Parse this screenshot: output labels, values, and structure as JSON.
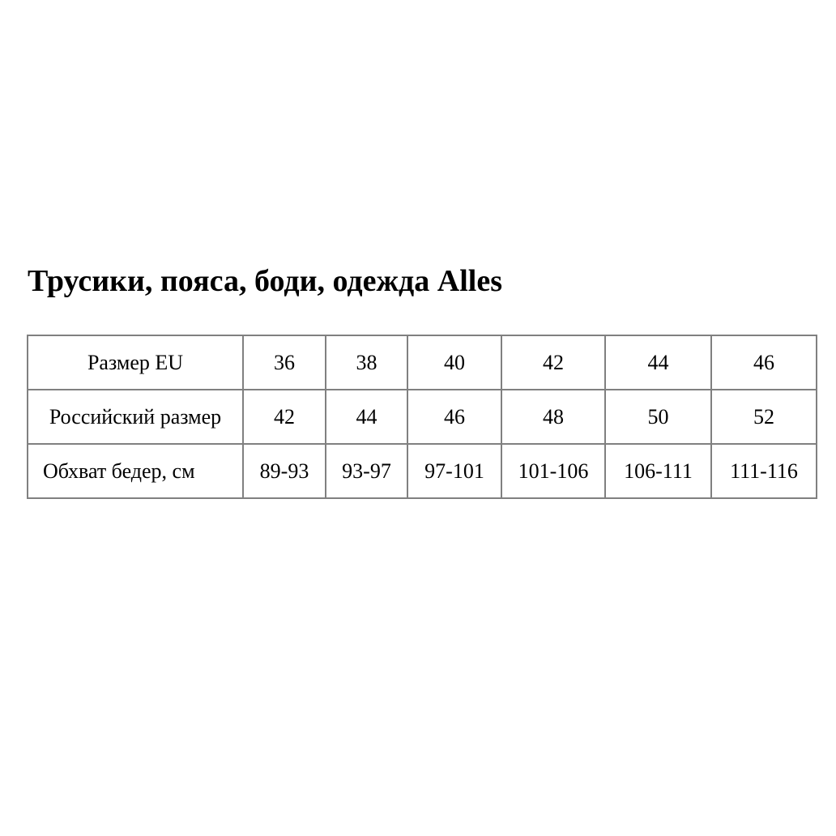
{
  "page": {
    "title": "Трусики, пояса, боди, одежда Alles"
  },
  "size_table": {
    "rows": [
      {
        "label": "Размер EU",
        "values": [
          "36",
          "38",
          "40",
          "42",
          "44",
          "46"
        ]
      },
      {
        "label": "Российский размер",
        "values": [
          "42",
          "44",
          "46",
          "48",
          "50",
          "52"
        ]
      },
      {
        "label": "Обхват бедер, см",
        "values": [
          "89-93",
          "93-97",
          "97-101",
          "101-106",
          "106-111",
          "111-116"
        ]
      }
    ]
  },
  "colors": {
    "text": "#000000",
    "table_border": "#808080",
    "background": "#ffffff"
  }
}
